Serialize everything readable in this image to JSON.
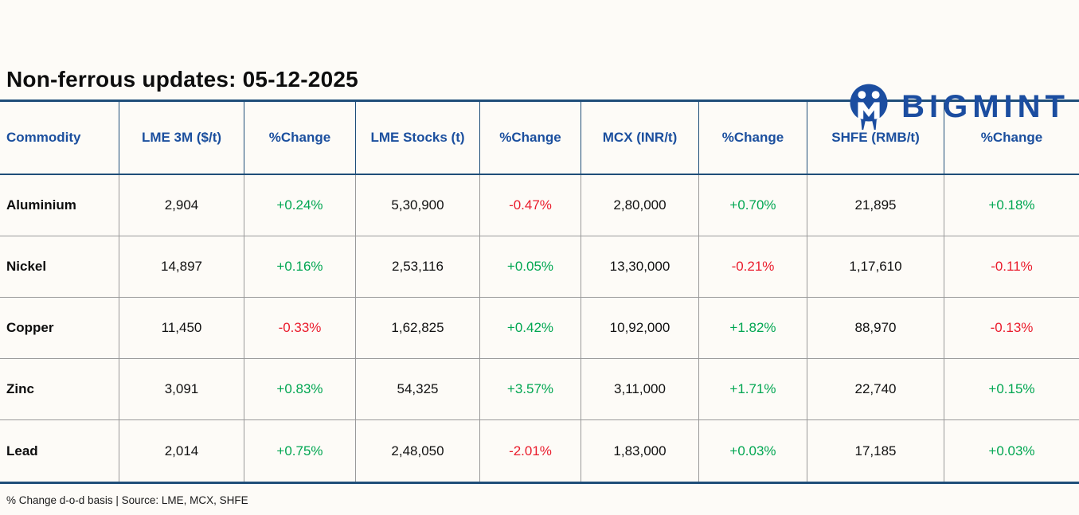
{
  "brand": {
    "name": "BIGMINT",
    "logo_icon": "bigmint-circle-m-logo"
  },
  "page_title": "Non-ferrous updates: 05-12-2025",
  "footnote": "% Change d-o-d basis | Source: LME, MCX, SHFE",
  "colors": {
    "header_text_blue": "#1b4f9e",
    "table_border_navy": "#1f4e79",
    "positive_green": "#00a651",
    "negative_red": "#ea1c2c",
    "grid_line_gray": "#9a9a9a",
    "logo_blue": "#1b4da0",
    "background": "#fdfbf7"
  },
  "chart_data": {
    "type": "table",
    "title": "Non-ferrous updates: 05-12-2025",
    "columns": [
      "Commodity",
      "LME 3M ($/t)",
      "%Change",
      "LME Stocks (t)",
      "%Change",
      "MCX (INR/t)",
      "%Change",
      "SHFE (RMB/t)",
      "%Change"
    ],
    "change_column_indexes": [
      2,
      4,
      6,
      8
    ],
    "rows": [
      [
        "Aluminium",
        "2,904",
        "+0.24%",
        "5,30,900",
        "-0.47%",
        "2,80,000",
        "+0.70%",
        "21,895",
        "+0.18%"
      ],
      [
        "Nickel",
        "14,897",
        "+0.16%",
        "2,53,116",
        "+0.05%",
        "13,30,000",
        "-0.21%",
        "1,17,610",
        "-0.11%"
      ],
      [
        "Copper",
        "11,450",
        "-0.33%",
        "1,62,825",
        "+0.42%",
        "10,92,000",
        "+1.82%",
        "88,970",
        "-0.13%"
      ],
      [
        "Zinc",
        "3,091",
        "+0.83%",
        "54,325",
        "+3.57%",
        "3,11,000",
        "+1.71%",
        "22,740",
        "+0.15%"
      ],
      [
        "Lead",
        "2,014",
        "+0.75%",
        "2,48,050",
        "-2.01%",
        "1,83,000",
        "+0.03%",
        "17,185",
        "+0.03%"
      ]
    ]
  }
}
